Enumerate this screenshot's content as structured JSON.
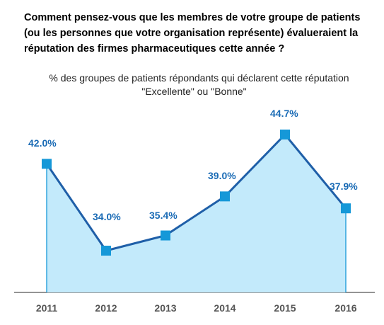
{
  "title": "Comment pensez-vous que les membres de votre groupe de patients (ou les personnes que votre organisation représente) évalueraient la réputation des firmes pharmaceutiques cette année ?",
  "subtitle": {
    "line1": "% des groupes de patients répondants qui déclarent cette réputation",
    "line2": "\"Excellente\" ou \"Bonne\""
  },
  "colors": {
    "line": "#1f5fa8",
    "marker": "#1598d8",
    "area": "#c3eafb",
    "label": "#1a6bb5",
    "axis": "#555555"
  },
  "chart_data": {
    "type": "area",
    "categories": [
      "2011",
      "2012",
      "2013",
      "2014",
      "2015",
      "2016"
    ],
    "values": [
      42.0,
      34.0,
      35.4,
      39.0,
      44.7,
      37.9
    ],
    "labels": [
      "42.0%",
      "34.0%",
      "35.4%",
      "39.0%",
      "44.7%",
      "37.9%"
    ],
    "title": "Comment pensez-vous que les membres de votre groupe de patients (ou les personnes que votre organisation représente) évalueraient la réputation des firmes pharmaceutiques cette année ?",
    "subtitle": "% des groupes de patients répondants qui déclarent cette réputation \"Excellente\" ou \"Bonne\"",
    "ylim": [
      27.5,
      46.5
    ],
    "grid": false,
    "legend": "none"
  }
}
